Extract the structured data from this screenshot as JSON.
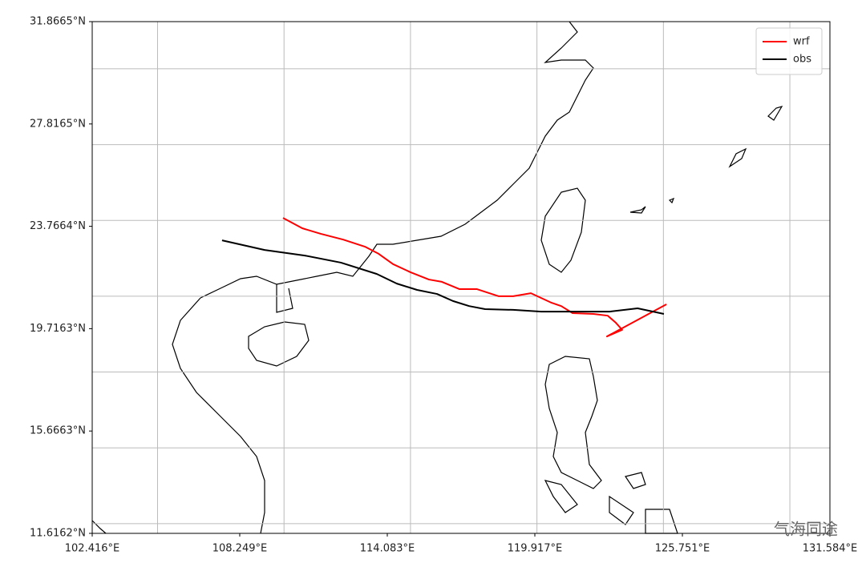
{
  "chart_data": {
    "type": "line",
    "xlim": [
      102.416,
      131.584
    ],
    "ylim": [
      11.6162,
      31.8665
    ],
    "xticks": [
      {
        "value": 102.416,
        "label": "102.416°E"
      },
      {
        "value": 108.249,
        "label": "108.249°E"
      },
      {
        "value": 114.083,
        "label": "114.083°E"
      },
      {
        "value": 119.917,
        "label": "119.917°E"
      },
      {
        "value": 125.751,
        "label": "125.751°E"
      },
      {
        "value": 131.584,
        "label": "131.584°E"
      }
    ],
    "yticks": [
      {
        "value": 11.6162,
        "label": "11.6162°N"
      },
      {
        "value": 15.6663,
        "label": "15.6663°N"
      },
      {
        "value": 19.7163,
        "label": "19.7163°N"
      },
      {
        "value": 23.7664,
        "label": "23.7664°N"
      },
      {
        "value": 27.8165,
        "label": "27.8165°N"
      },
      {
        "value": 31.8665,
        "label": "31.8665°N"
      }
    ],
    "xgrid": [
      105,
      110,
      115,
      120,
      125,
      130
    ],
    "ygrid": [
      12,
      15,
      18,
      21,
      24,
      27,
      30
    ],
    "grid": true,
    "legend": "upper right",
    "series": [
      {
        "name": "wrf",
        "color": "#ff0000",
        "x": [
          109.96,
          110.72,
          111.45,
          112.34,
          113.2,
          113.74,
          114.31,
          115.0,
          115.73,
          116.24,
          116.94,
          117.63,
          118.49,
          119.06,
          119.76,
          120.58,
          120.96,
          121.41,
          122.23,
          122.8,
          123.12,
          123.37,
          122.77,
          125.12
        ],
        "values": [
          24.1,
          23.69,
          23.47,
          23.24,
          22.96,
          22.68,
          22.27,
          21.95,
          21.66,
          21.57,
          21.28,
          21.28,
          21.0,
          21.0,
          21.12,
          20.74,
          20.61,
          20.33,
          20.3,
          20.23,
          19.95,
          19.67,
          19.41,
          20.68
        ]
      },
      {
        "name": "obs",
        "color": "#000000",
        "x": [
          107.55,
          109.23,
          110.82,
          112.25,
          113.67,
          114.46,
          115.26,
          116.05,
          116.68,
          117.32,
          117.95,
          119.06,
          120.17,
          121.6,
          122.87,
          123.98,
          125.02
        ],
        "values": [
          23.21,
          22.83,
          22.61,
          22.33,
          21.88,
          21.5,
          21.25,
          21.09,
          20.81,
          20.61,
          20.49,
          20.46,
          20.39,
          20.39,
          20.39,
          20.52,
          20.3
        ]
      }
    ],
    "watermark": "气海同途"
  }
}
